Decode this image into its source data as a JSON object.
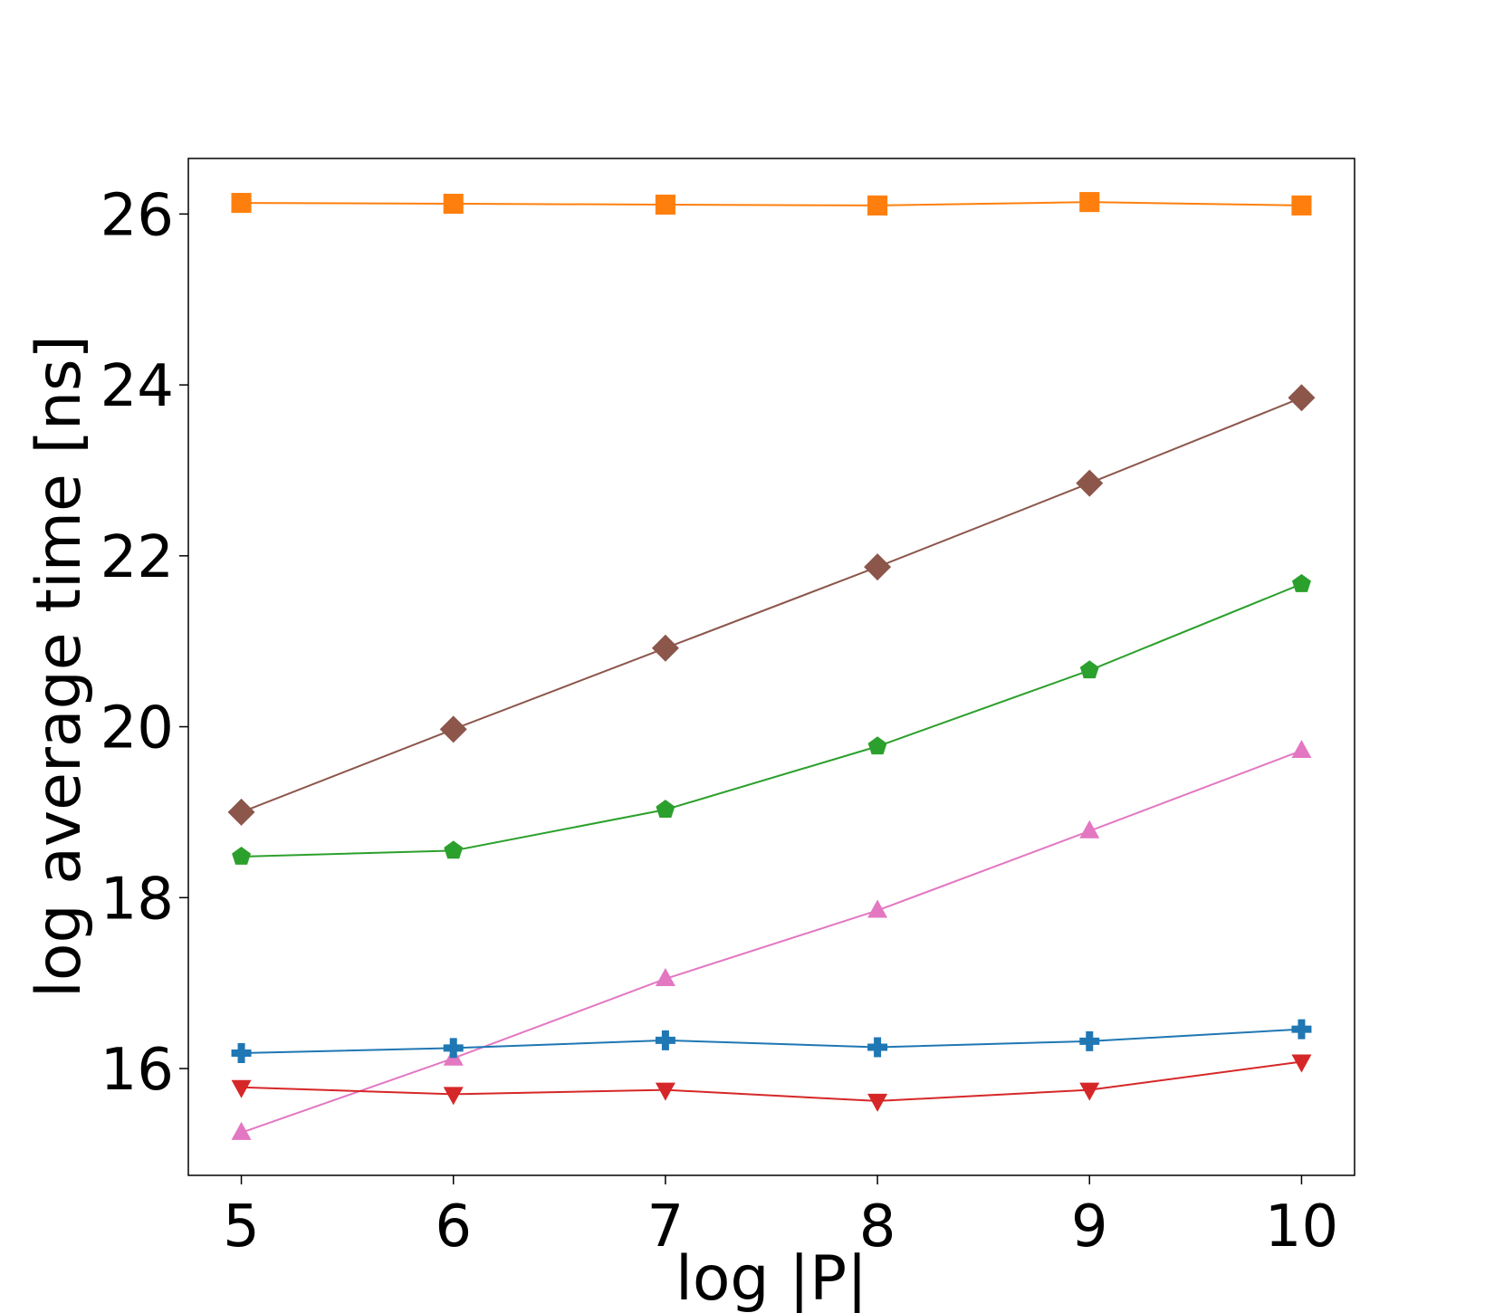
{
  "chart_data": {
    "type": "line",
    "xlabel": "log |P|",
    "ylabel": "log average time [ns]",
    "x": [
      5,
      6,
      7,
      8,
      9,
      10
    ],
    "xlim": [
      4.75,
      10.25
    ],
    "ylim": [
      14.75,
      26.65
    ],
    "xticks": [
      "5",
      "6",
      "7",
      "8",
      "9",
      "10"
    ],
    "yticks": [
      "16",
      "18",
      "20",
      "22",
      "24",
      "26"
    ],
    "grid": false,
    "legend": false,
    "series": [
      {
        "color": "#ff7f0e",
        "marker": "square",
        "values": [
          26.13,
          26.12,
          26.11,
          26.1,
          26.14,
          26.1
        ]
      },
      {
        "color": "#8c564b",
        "marker": "diamond",
        "values": [
          19.0,
          19.97,
          20.92,
          21.87,
          22.85,
          23.85
        ]
      },
      {
        "color": "#2ca02c",
        "marker": "pentagon",
        "values": [
          18.48,
          18.55,
          19.03,
          19.77,
          20.66,
          21.67
        ]
      },
      {
        "color": "#e377c2",
        "marker": "triangle-up",
        "values": [
          15.25,
          16.12,
          17.05,
          17.85,
          18.78,
          19.72
        ]
      },
      {
        "color": "#1f77b4",
        "marker": "plus",
        "values": [
          16.18,
          16.24,
          16.33,
          16.25,
          16.32,
          16.46
        ]
      },
      {
        "color": "#d62728",
        "marker": "triangle-down",
        "values": [
          15.78,
          15.7,
          15.75,
          15.62,
          15.75,
          16.08
        ]
      }
    ]
  }
}
